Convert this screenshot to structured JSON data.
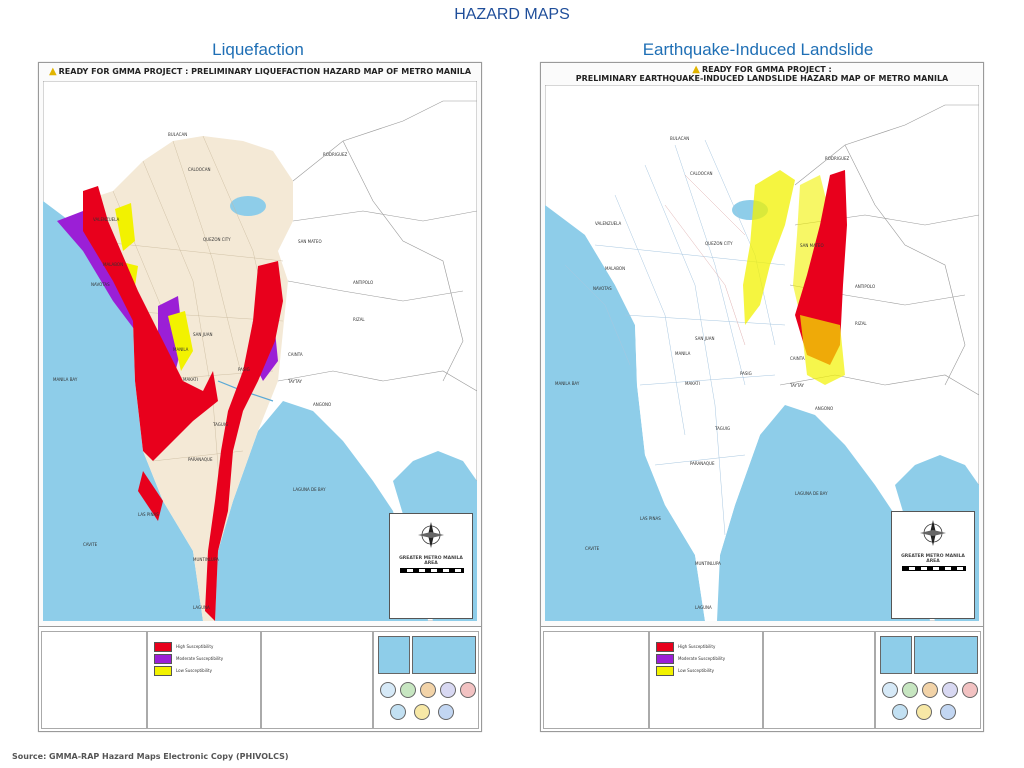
{
  "slide": {
    "title": "HAZARD MAPS",
    "source": "Source: GMMA-RAP Hazard Maps Electronic Copy (PHIVOLCS)"
  },
  "maps": [
    {
      "heading": "Liquefaction",
      "header_line1": "READY FOR GMMA PROJECT : PRELIMINARY LIQUEFACTION HAZARD MAP OF METRO MANILA",
      "header_line2": "",
      "inset_title": "GREATER METRO MANILA AREA",
      "legend": [
        {
          "label": "High Susceptibility",
          "color": "#e8001c"
        },
        {
          "label": "Moderate Susceptibility",
          "color": "#9b1fd6"
        },
        {
          "label": "Low Susceptibility",
          "color": "#f2f200"
        }
      ],
      "place_labels": [
        "BULACAN",
        "CALOOCAN",
        "QUEZON CITY",
        "MANILA",
        "PASIG",
        "TAGUIG",
        "CAVITE",
        "LAGUNA",
        "RIZAL",
        "ANTIPOLO",
        "SAN MATEO",
        "RODRIGUEZ",
        "MANILA BAY",
        "LAGUNA DE BAY",
        "CAINTA",
        "TAYTAY",
        "ANGONO",
        "PARANAQUE",
        "LAS PINAS",
        "MUNTINLUPA",
        "VALENZUELA",
        "MALABON",
        "NAVOTAS",
        "SAN JUAN",
        "MAKATI"
      ]
    },
    {
      "heading": "Earthquake-Induced Landslide",
      "header_line1": "READY FOR GMMA PROJECT :",
      "header_line2": "PRELIMINARY EARTHQUAKE-INDUCED LANDSLIDE HAZARD MAP OF METRO MANILA",
      "inset_title": "GREATER METRO MANILA AREA",
      "legend": [
        {
          "label": "High Susceptibility",
          "color": "#e8001c"
        },
        {
          "label": "Moderate Susceptibility",
          "color": "#9b1fd6"
        },
        {
          "label": "Low Susceptibility",
          "color": "#f2f200"
        }
      ],
      "place_labels": [
        "BULACAN",
        "CALOOCAN",
        "QUEZON CITY",
        "MANILA",
        "PASIG",
        "TAGUIG",
        "CAVITE",
        "LAGUNA",
        "RIZAL",
        "ANTIPOLO",
        "SAN MATEO",
        "RODRIGUEZ",
        "MANILA BAY",
        "LAGUNA DE BAY",
        "CAINTA",
        "TAYTAY",
        "ANGONO",
        "PARANAQUE",
        "LAS PINAS",
        "MUNTINLUPA",
        "VALENZUELA",
        "MALABON",
        "NAVOTAS",
        "SAN JUAN",
        "MAKATI"
      ]
    }
  ],
  "colors": {
    "water": "#8ecde9",
    "land": "#f4e9d6",
    "title_blue": "#1f4e9a",
    "heading_blue": "#1f6fb5"
  }
}
